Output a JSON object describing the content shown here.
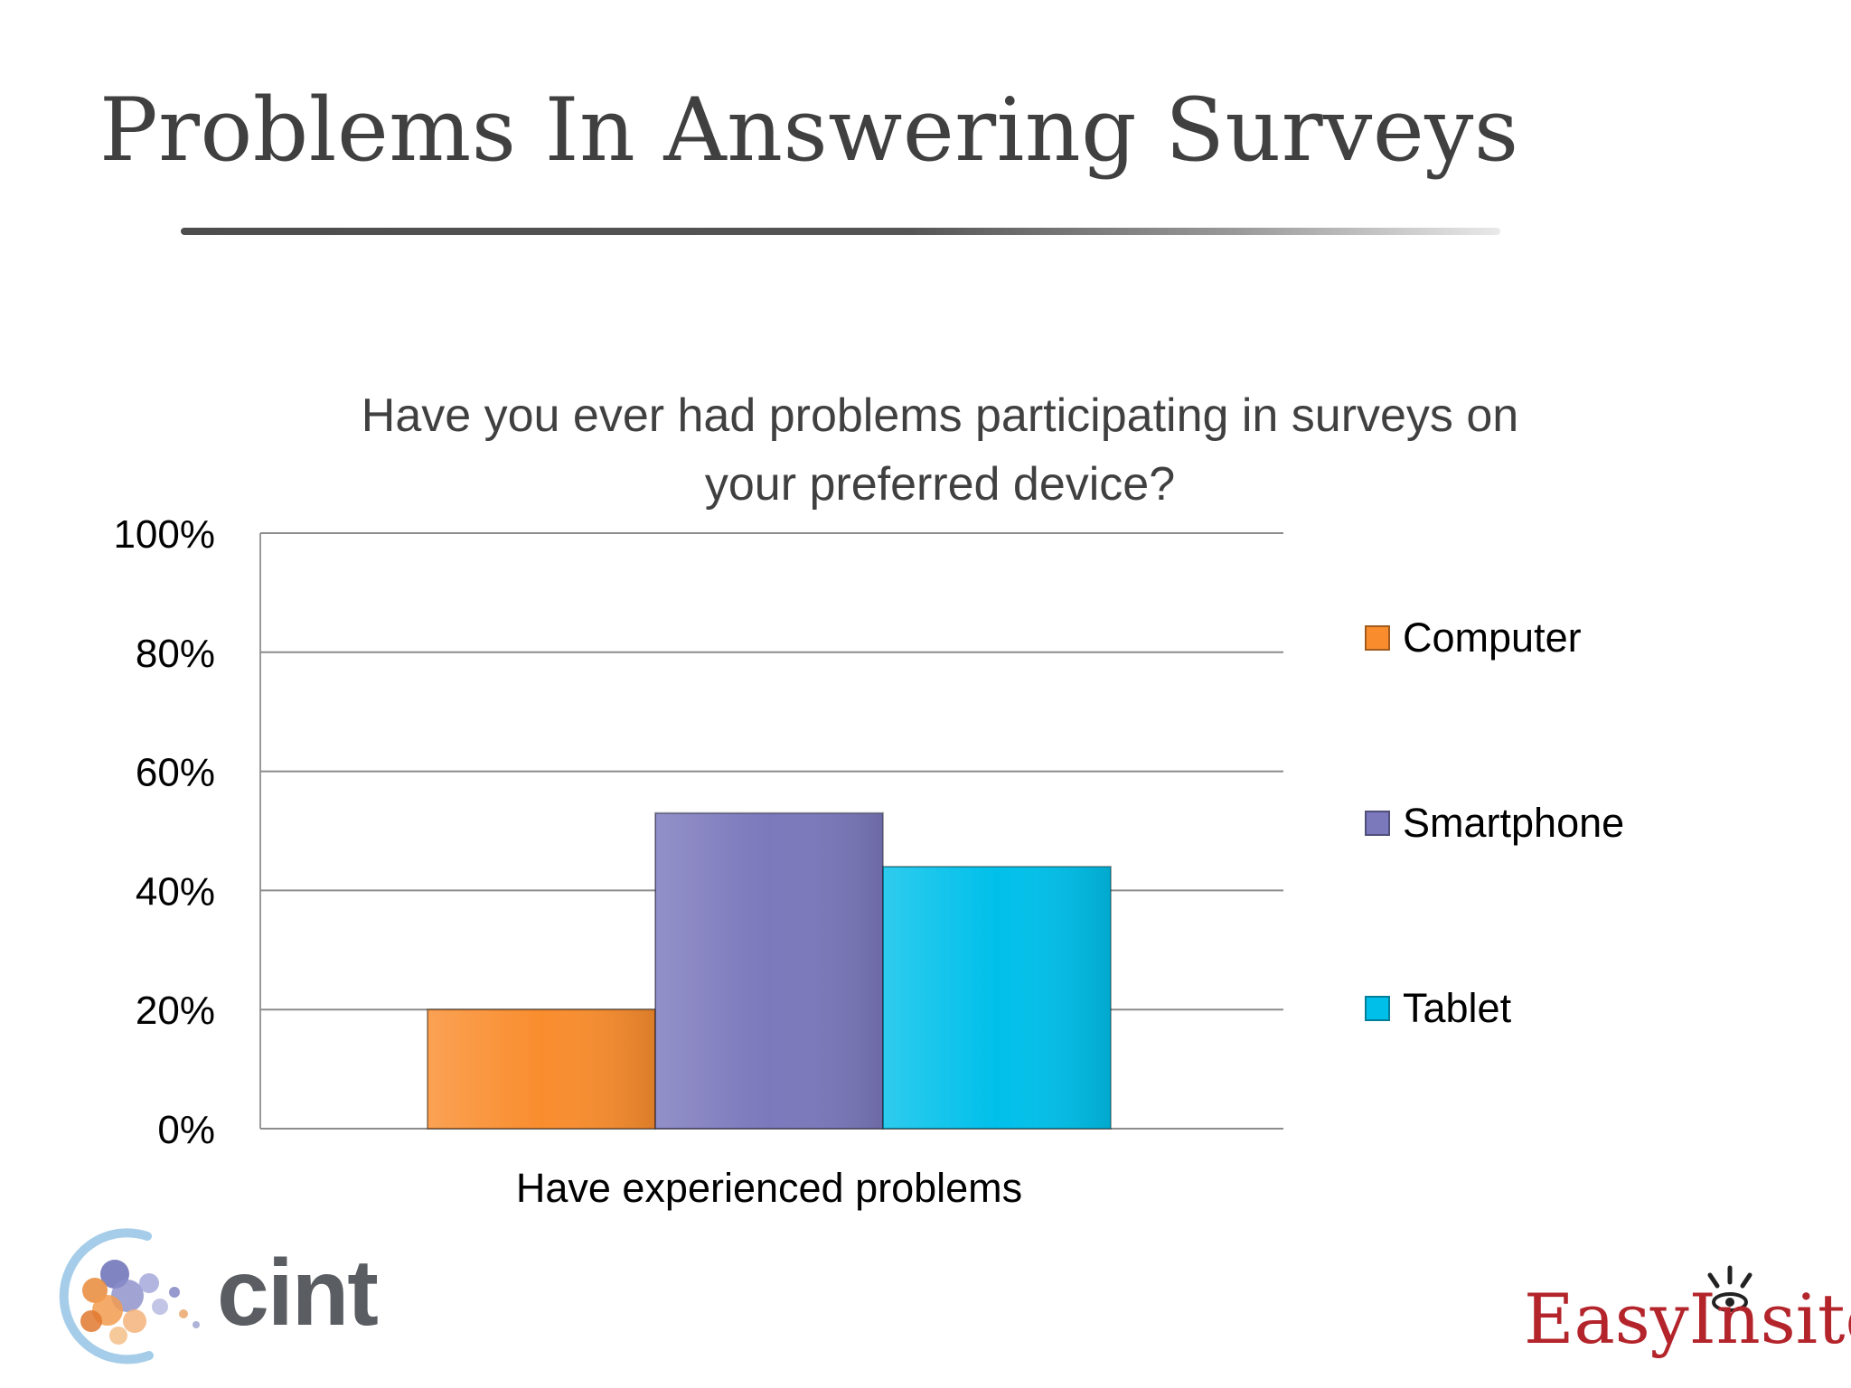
{
  "slide": {
    "title": "Problems In Answering Surveys"
  },
  "chart_data": {
    "type": "bar",
    "title_lines": [
      "Have you ever had problems participating in surveys on",
      "your preferred device?"
    ],
    "categories": [
      "Have experienced problems"
    ],
    "series": [
      {
        "name": "Computer",
        "values": [
          20
        ],
        "color": "#f98d2e"
      },
      {
        "name": "Smartphone",
        "values": [
          53
        ],
        "color": "#7b78bc"
      },
      {
        "name": "Tablet",
        "values": [
          44
        ],
        "color": "#00c0ea"
      }
    ],
    "ylim": [
      0,
      100
    ],
    "yticks": [
      0,
      20,
      40,
      60,
      80,
      100
    ],
    "ytick_labels": [
      "0%",
      "20%",
      "40%",
      "60%",
      "80%",
      "100%"
    ],
    "grid": true,
    "legend_position": "right"
  },
  "logos": {
    "left": "cint",
    "right": "EasyInsites"
  }
}
